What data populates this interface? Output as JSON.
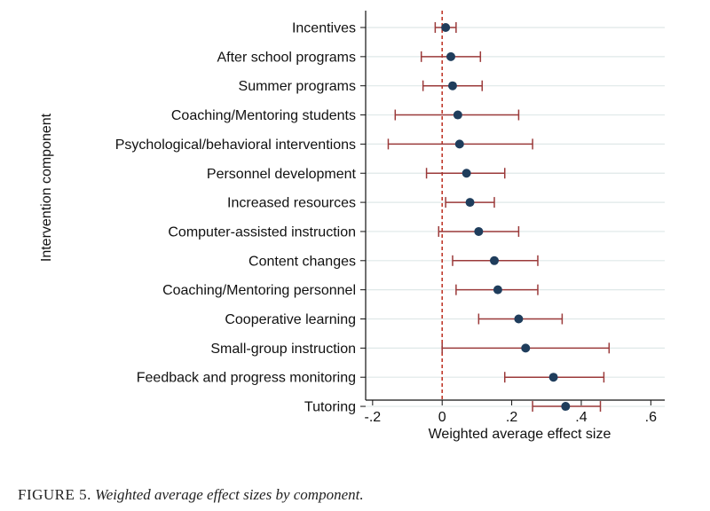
{
  "chart_data": {
    "type": "scatter",
    "subtype": "dot-and-whisker",
    "orientation": "horizontal",
    "xlabel": "Weighted average effect size",
    "ylabel": "Intervention component",
    "xlim": [
      -0.22,
      0.64
    ],
    "xticks": [
      {
        "value": -0.2,
        "label": "-.2"
      },
      {
        "value": 0.0,
        "label": "0"
      },
      {
        "value": 0.2,
        "label": ".2"
      },
      {
        "value": 0.4,
        "label": ".4"
      },
      {
        "value": 0.6,
        "label": ".6"
      }
    ],
    "reference_line": {
      "x": 0,
      "style": "dashed",
      "color": "#c0392b"
    },
    "grid": "horizontal",
    "colors": {
      "point": "#1f3d5c",
      "interval": "#9b3a3a",
      "grid": "#dfe8e8",
      "axis": "#111111"
    },
    "categories": [
      "Incentives",
      "After school programs",
      "Summer programs",
      "Coaching/Mentoring students",
      "Psychological/behavioral interventions",
      "Personnel development",
      "Increased resources",
      "Computer-assisted instruction",
      "Content changes",
      "Coaching/Mentoring personnel",
      "Cooperative learning",
      "Small-group instruction",
      "Feedback and progress monitoring",
      "Tutoring"
    ],
    "estimates": [
      0.01,
      0.025,
      0.03,
      0.045,
      0.05,
      0.07,
      0.08,
      0.105,
      0.15,
      0.16,
      0.22,
      0.24,
      0.32,
      0.355
    ],
    "lower": [
      -0.02,
      -0.06,
      -0.055,
      -0.135,
      -0.155,
      -0.045,
      0.01,
      -0.01,
      0.03,
      0.04,
      0.105,
      0.0,
      0.18,
      0.26
    ],
    "upper": [
      0.04,
      0.11,
      0.115,
      0.22,
      0.26,
      0.18,
      0.15,
      0.22,
      0.275,
      0.275,
      0.345,
      0.48,
      0.465,
      0.455
    ]
  },
  "caption": {
    "label": "FIGURE 5.",
    "text": "Weighted average effect sizes by component."
  }
}
